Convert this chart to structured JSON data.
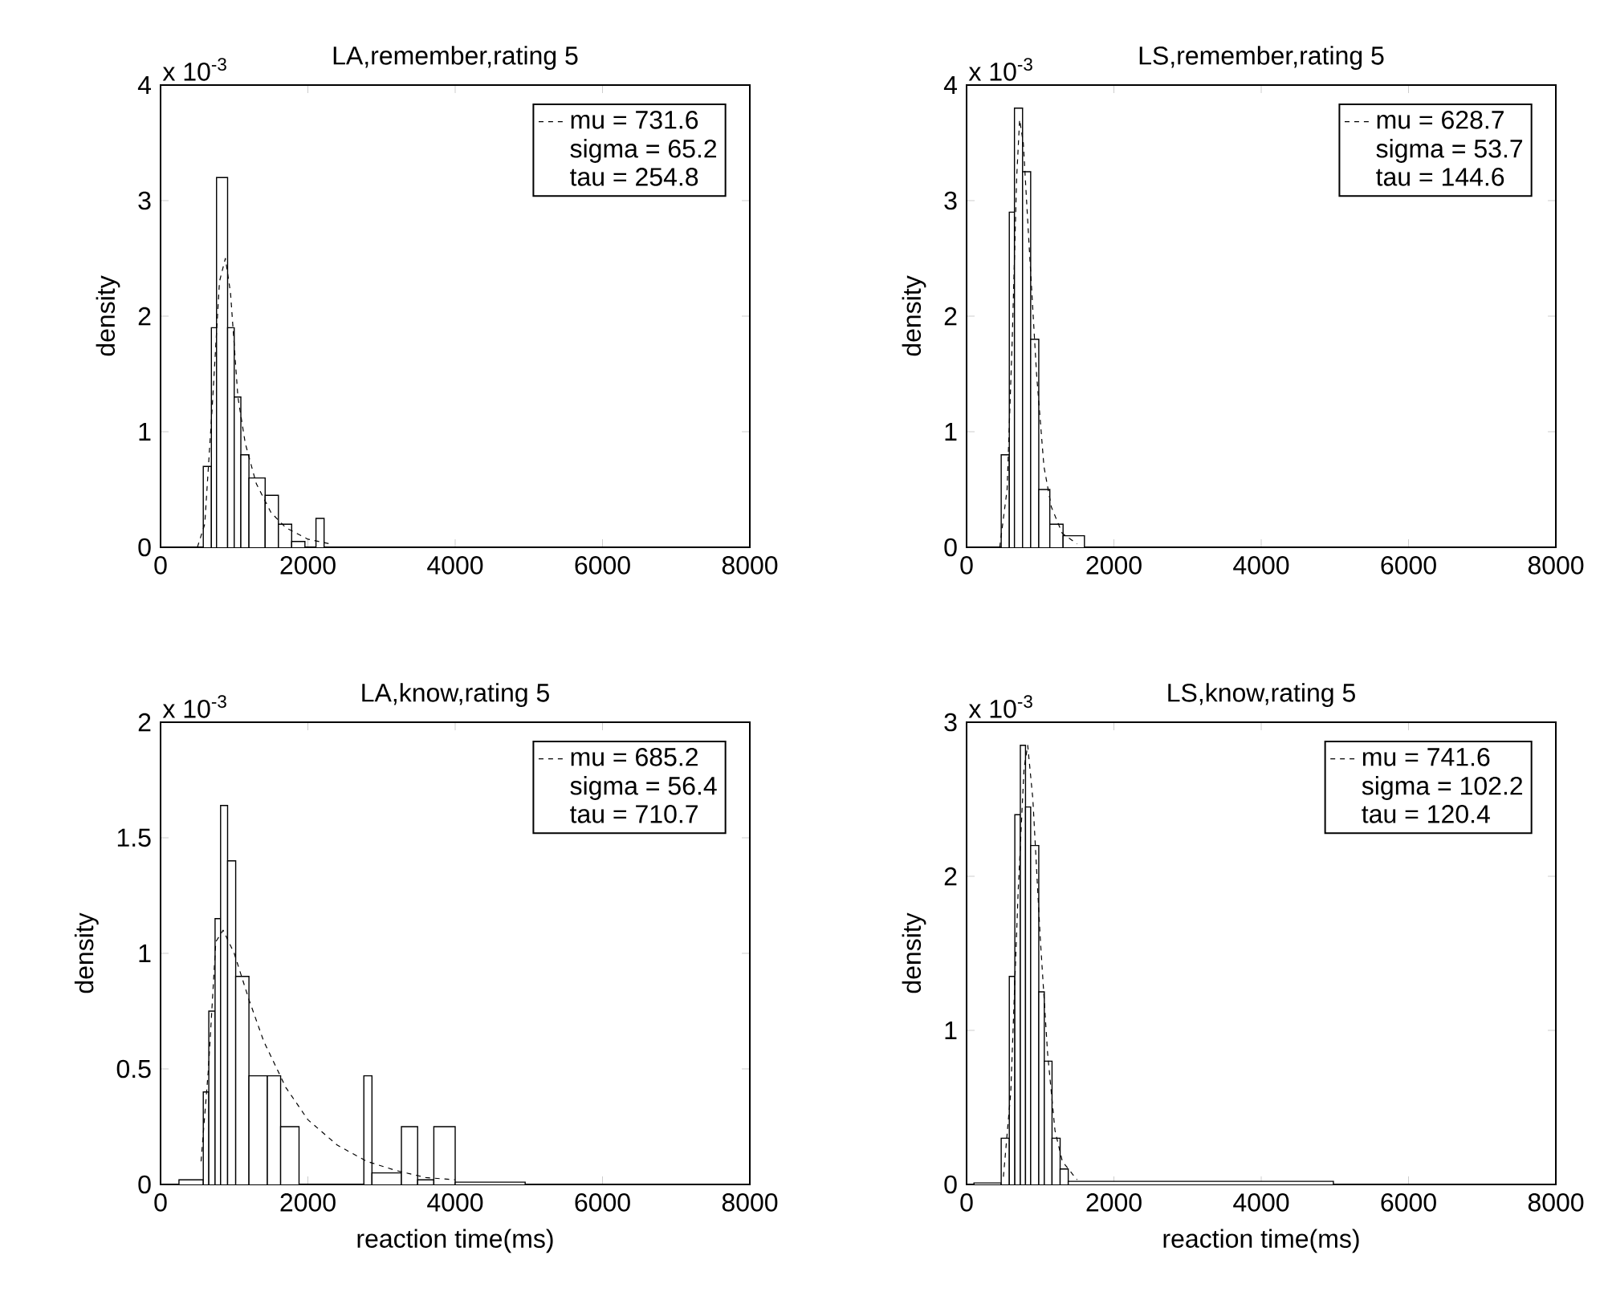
{
  "chart_data": [
    {
      "type": "histogram",
      "title": "LA,remember,rating 5",
      "ylabel": "density",
      "color": "#000000",
      "bins": [
        580,
        690,
        760,
        910,
        1000,
        1090,
        1200,
        1420,
        1600,
        1780,
        1960,
        2110,
        2220
      ],
      "values": [
        0.7,
        1.9,
        3.2,
        1.9,
        1.3,
        0.8,
        0.6,
        0.45,
        0.2,
        0.05,
        0,
        0.25
      ],
      "series": [
        {
          "type": "line",
          "name": "mu = 731.6",
          "color": "#000000",
          "line_style": "dashed",
          "x": [
            500,
            600,
            700,
            800,
            880,
            950,
            1050,
            1150,
            1300,
            1500,
            1700,
            2000,
            2300
          ],
          "values": [
            0,
            0.2,
            1.2,
            2.3,
            2.5,
            2.2,
            1.3,
            0.9,
            0.55,
            0.3,
            0.17,
            0.07,
            0.03
          ]
        }
      ],
      "annotations": [
        "x 10$^{-3}$",
        "sigma = 65.2",
        "tau = 254.8"
      ],
      "legend": "top right",
      "xlim": [
        0,
        8000
      ],
      "xticks": [
        0,
        2000,
        4000,
        6000,
        8000
      ],
      "ylim": [
        0,
        4
      ],
      "yticks": [
        0,
        1,
        2,
        3,
        4
      ]
    },
    {
      "type": "histogram",
      "title": "LS,remember,rating 5",
      "ylabel": "density",
      "color": "#000000",
      "bins": [
        470,
        580,
        650,
        760,
        870,
        980,
        1130,
        1310,
        1600
      ],
      "values": [
        0.8,
        2.9,
        3.8,
        3.25,
        1.8,
        0.5,
        0.2,
        0.1
      ],
      "series": [
        {
          "type": "line",
          "name": "mu = 628.7",
          "color": "#000000",
          "line_style": "dashed",
          "x": [
            450,
            550,
            620,
            680,
            720,
            770,
            850,
            950,
            1050,
            1150,
            1300,
            1500
          ],
          "values": [
            0,
            0.5,
            1.8,
            3.2,
            3.7,
            3.5,
            2.6,
            1.5,
            0.7,
            0.35,
            0.12,
            0.03
          ]
        }
      ],
      "annotations": [
        "x 10$^{-3}$",
        "sigma = 53.7",
        "tau = 144.6"
      ],
      "legend": "top right",
      "xlim": [
        0,
        8000
      ],
      "xticks": [
        0,
        2000,
        4000,
        6000,
        8000
      ],
      "ylim": [
        0,
        4
      ],
      "yticks": [
        0,
        1,
        2,
        3,
        4
      ]
    },
    {
      "type": "histogram",
      "title": "LA,know,rating 5",
      "xlabel": "reaction time(ms)",
      "ylabel": "density",
      "color": "#000000",
      "bins": [
        250,
        580,
        655,
        740,
        815,
        910,
        1020,
        1200,
        1450,
        1630,
        1880,
        2760,
        2870,
        3270,
        3490,
        3710,
        4000,
        4950
      ],
      "values": [
        0.02,
        0.4,
        0.75,
        1.15,
        1.64,
        1.4,
        0.9,
        0.47,
        0.47,
        0.25,
        0,
        0.47,
        0.05,
        0.25,
        0.02,
        0.25,
        0.01
      ],
      "series": [
        {
          "type": "line",
          "name": "mu = 685.2",
          "color": "#000000",
          "line_style": "dashed",
          "x": [
            550,
            650,
            750,
            850,
            1000,
            1200,
            1400,
            1700,
            2000,
            2400,
            2800,
            3200,
            3600,
            4000
          ],
          "values": [
            0.1,
            0.5,
            1.05,
            1.1,
            1.0,
            0.8,
            0.62,
            0.42,
            0.28,
            0.17,
            0.1,
            0.06,
            0.03,
            0.02
          ]
        }
      ],
      "annotations": [
        "x 10$^{-3}$",
        "sigma = 56.4",
        "tau = 710.7"
      ],
      "legend": "top right",
      "xlim": [
        0,
        8000
      ],
      "xticks": [
        0,
        2000,
        4000,
        6000,
        8000
      ],
      "ylim": [
        0,
        2
      ],
      "yticks": [
        0,
        0.5,
        1,
        1.5,
        2
      ]
    },
    {
      "type": "histogram",
      "title": "LS,know,rating 5",
      "xlabel": "reaction time(ms)",
      "ylabel": "density",
      "color": "#000000",
      "bins": [
        100,
        470,
        580,
        655,
        730,
        800,
        870,
        980,
        1055,
        1160,
        1270,
        1380,
        4980
      ],
      "values": [
        0.01,
        0.3,
        1.35,
        2.4,
        2.85,
        2.45,
        2.2,
        1.25,
        0.8,
        0.3,
        0.1,
        0.02
      ],
      "series": [
        {
          "type": "line",
          "name": "mu = 741.6",
          "color": "#000000",
          "line_style": "dashed",
          "x": [
            500,
            600,
            700,
            780,
            830,
            900,
            1000,
            1100,
            1200,
            1300,
            1500
          ],
          "values": [
            0.05,
            0.6,
            1.9,
            2.7,
            2.85,
            2.5,
            1.6,
            0.85,
            0.35,
            0.15,
            0.03
          ]
        }
      ],
      "annotations": [
        "x 10$^{-3}$",
        "sigma = 102.2",
        "tau = 120.4"
      ],
      "legend": "top right",
      "xlim": [
        0,
        8000
      ],
      "xticks": [
        0,
        2000,
        4000,
        6000,
        8000
      ],
      "ylim": [
        0,
        3
      ],
      "yticks": [
        0,
        1,
        2,
        3
      ]
    }
  ]
}
